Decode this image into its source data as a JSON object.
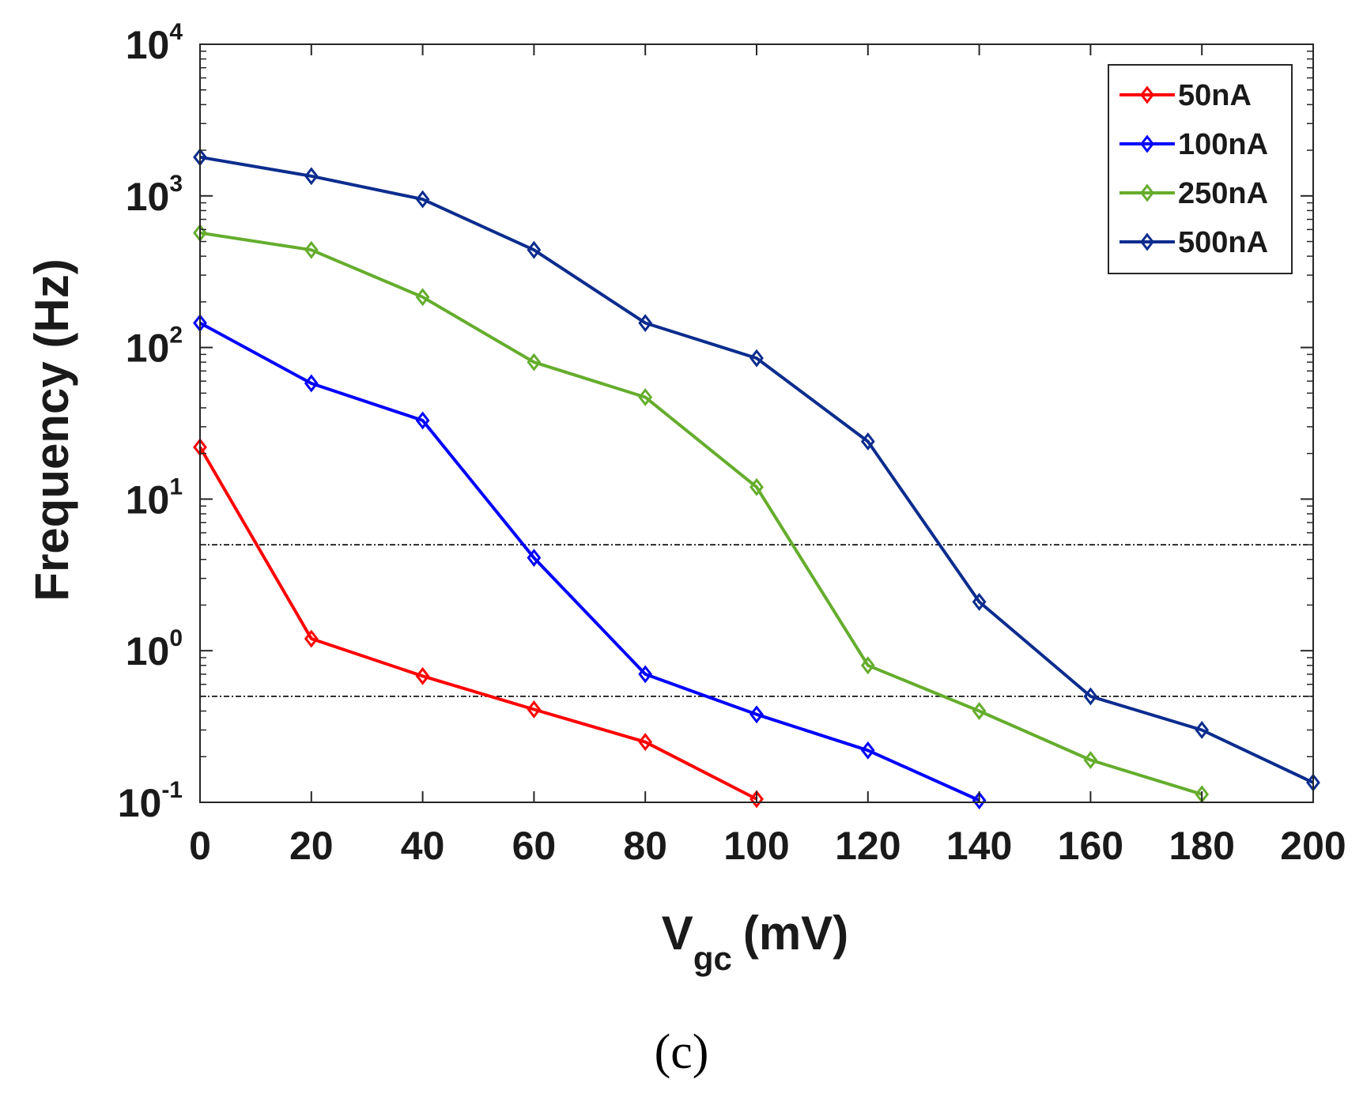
{
  "chart_data": {
    "type": "line",
    "yscale": "log",
    "title": "",
    "caption": "(c)",
    "xlabel": {
      "main": "V",
      "subscript": "gc",
      "unit": "(mV)"
    },
    "ylabel": "Frequency (Hz)",
    "xlim": [
      0,
      200
    ],
    "ylim": [
      0.1,
      10000
    ],
    "x_ticks": [
      0,
      20,
      40,
      60,
      80,
      100,
      120,
      140,
      160,
      180,
      200
    ],
    "y_ticks": [
      {
        "value": 0.1,
        "base": "10",
        "exp": "-1"
      },
      {
        "value": 1,
        "base": "10",
        "exp": "0"
      },
      {
        "value": 10,
        "base": "10",
        "exp": "1"
      },
      {
        "value": 100,
        "base": "10",
        "exp": "2"
      },
      {
        "value": 1000,
        "base": "10",
        "exp": "3"
      },
      {
        "value": 10000,
        "base": "10",
        "exp": "4"
      }
    ],
    "reference_lines": [
      5,
      0.5
    ],
    "legend_position": "top-right",
    "marker": "diamond",
    "series": [
      {
        "name": "50nA",
        "color": "#ff0000",
        "x": [
          0,
          20,
          40,
          60,
          80,
          100
        ],
        "values": [
          22,
          1.2,
          0.68,
          0.41,
          0.25,
          0.105
        ]
      },
      {
        "name": "100nA",
        "color": "#0000ff",
        "x": [
          0,
          20,
          40,
          60,
          80,
          100,
          120,
          140
        ],
        "values": [
          145,
          58,
          33,
          4.1,
          0.7,
          0.38,
          0.22,
          0.103
        ]
      },
      {
        "name": "250nA",
        "color": "#65ad2d",
        "x": [
          0,
          20,
          40,
          60,
          80,
          100,
          120,
          140,
          160,
          180
        ],
        "values": [
          570,
          440,
          215,
          80,
          47,
          12,
          0.8,
          0.4,
          0.19,
          0.113
        ]
      },
      {
        "name": "500nA",
        "color": "#0c2c8e",
        "x": [
          0,
          20,
          40,
          60,
          80,
          100,
          120,
          140,
          160,
          180,
          200
        ],
        "values": [
          1800,
          1350,
          950,
          440,
          145,
          85,
          24,
          2.1,
          0.5,
          0.3,
          0.135
        ]
      }
    ]
  }
}
